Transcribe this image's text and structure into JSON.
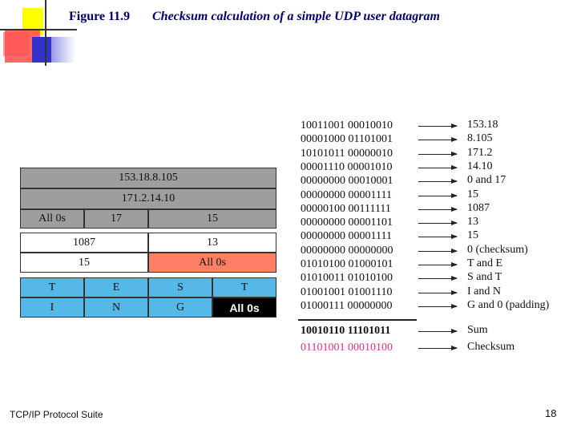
{
  "title": {
    "figure": "Figure 11.9",
    "caption": "Checksum calculation of a simple UDP user datagram"
  },
  "datagram": {
    "source_ip": "153.18.8.105",
    "dest_ip": "171.2.14.10",
    "zeros": "All 0s",
    "protocol": "17",
    "udp_length_pseudo": "15",
    "source_port": "1087",
    "dest_port": "13",
    "udp_length": "15",
    "checksum": "All 0s",
    "data_row1": [
      "T",
      "E",
      "S",
      "T"
    ],
    "data_row2": [
      "I",
      "N",
      "G",
      "All 0s"
    ]
  },
  "colors": {
    "pseudo_header": "#9e9e9e",
    "checksum_field": "#ff7f66",
    "data": "#56b8e6"
  },
  "rows": [
    {
      "bits": "10011001 00010010",
      "label": "153.18"
    },
    {
      "bits": "00001000 01101001",
      "label": "8.105"
    },
    {
      "bits": "10101011 00000010",
      "label": "171.2"
    },
    {
      "bits": "00001110 00001010",
      "label": "14.10"
    },
    {
      "bits": "00000000 00010001",
      "label": "0 and 17"
    },
    {
      "bits": "00000000 00001111",
      "label": "15"
    },
    {
      "bits": "00000100 00111111",
      "label": "1087"
    },
    {
      "bits": "00000000 00001101",
      "label": "13"
    },
    {
      "bits": "00000000 00001111",
      "label": "15"
    },
    {
      "bits": "00000000 00000000",
      "label": "0 (checksum)"
    },
    {
      "bits": "01010100 01000101",
      "label": "T and E"
    },
    {
      "bits": "01010011 01010100",
      "label": "S and T"
    },
    {
      "bits": "01001001 01001110",
      "label": "I and N"
    },
    {
      "bits": "01000111 00000000",
      "label": "G and 0 (padding)"
    }
  ],
  "sum": {
    "bits": "10010110 11101011",
    "label": "Sum"
  },
  "checksum_result": {
    "bits": "01101001 00010100",
    "label": "Checksum"
  },
  "footer": {
    "left": "TCP/IP Protocol Suite",
    "page": "18"
  }
}
